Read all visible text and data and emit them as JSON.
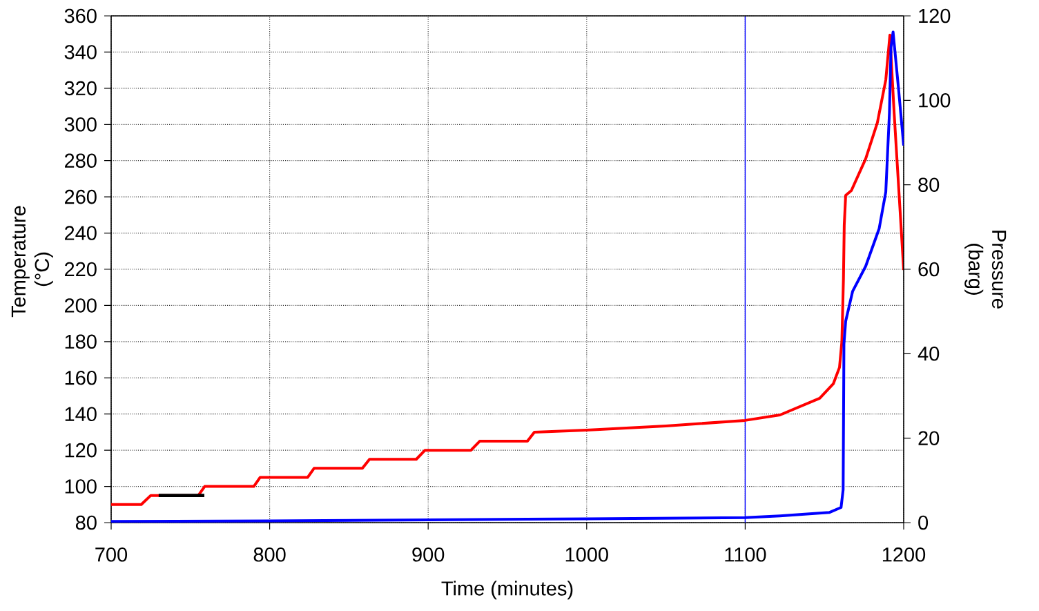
{
  "chart_data": {
    "type": "line",
    "xlabel": "Time (minutes)",
    "ylabel": "Temperature (°C)",
    "y2label": "Pressure (barg)",
    "xlim": [
      700,
      1200
    ],
    "xticks": [
      700,
      800,
      900,
      1000,
      1100,
      1200
    ],
    "ylim": [
      80,
      360
    ],
    "yticks": [
      80,
      100,
      120,
      140,
      160,
      180,
      200,
      220,
      240,
      260,
      280,
      300,
      320,
      340,
      360
    ],
    "y2lim": [
      0,
      120
    ],
    "y2ticks": [
      0,
      20,
      40,
      60,
      80,
      100,
      120
    ],
    "grid": true,
    "line_style": "solid",
    "ref_lines": [
      {
        "axis": "x",
        "value": 1100,
        "color": "#0000ff"
      }
    ],
    "series": [
      {
        "color": "#ff0000",
        "x": [
          700,
          719,
          725,
          755,
          759,
          790,
          794,
          824,
          828,
          858.5,
          863,
          892.5,
          898,
          927,
          932.5,
          962.6,
          967,
          1000,
          1050,
          1100,
          1122,
          1147,
          1155.6,
          1159.5,
          1161,
          1162,
          1162.5,
          1163.4,
          1167,
          1176,
          1183.4,
          1188.7,
          1191.3,
          1194,
          1200
        ],
        "values": [
          90,
          90,
          95,
          95,
          100,
          100,
          105,
          105,
          110,
          110,
          115,
          115,
          120,
          120,
          125,
          125,
          130,
          131.1,
          133.4,
          136.5,
          139.5,
          148.7,
          156.7,
          165.8,
          180,
          215,
          244.4,
          260.8,
          263.5,
          281,
          301,
          324.6,
          349.4,
          306,
          219.6
        ]
      },
      {
        "color": "#0000ff",
        "axis": "y2",
        "x": [
          700,
          800,
          900,
          1000,
          1100,
          1122,
          1153,
          1160.5,
          1161.8,
          1162.3,
          1163.4,
          1167.8,
          1176,
          1184.5,
          1188.7,
          1191,
          1192,
          1193.3,
          1196.8,
          1200
        ],
        "values": [
          0.3,
          0.4,
          0.65,
          0.9,
          1.2,
          1.6,
          2.4,
          3.6,
          7.8,
          42.3,
          47.7,
          54.8,
          60.7,
          69.6,
          78.3,
          97,
          112.6,
          116.2,
          102.5,
          89.3
        ]
      },
      {
        "color": "#000000",
        "x": [
          730,
          758.8
        ],
        "values": [
          95,
          95
        ]
      }
    ]
  }
}
